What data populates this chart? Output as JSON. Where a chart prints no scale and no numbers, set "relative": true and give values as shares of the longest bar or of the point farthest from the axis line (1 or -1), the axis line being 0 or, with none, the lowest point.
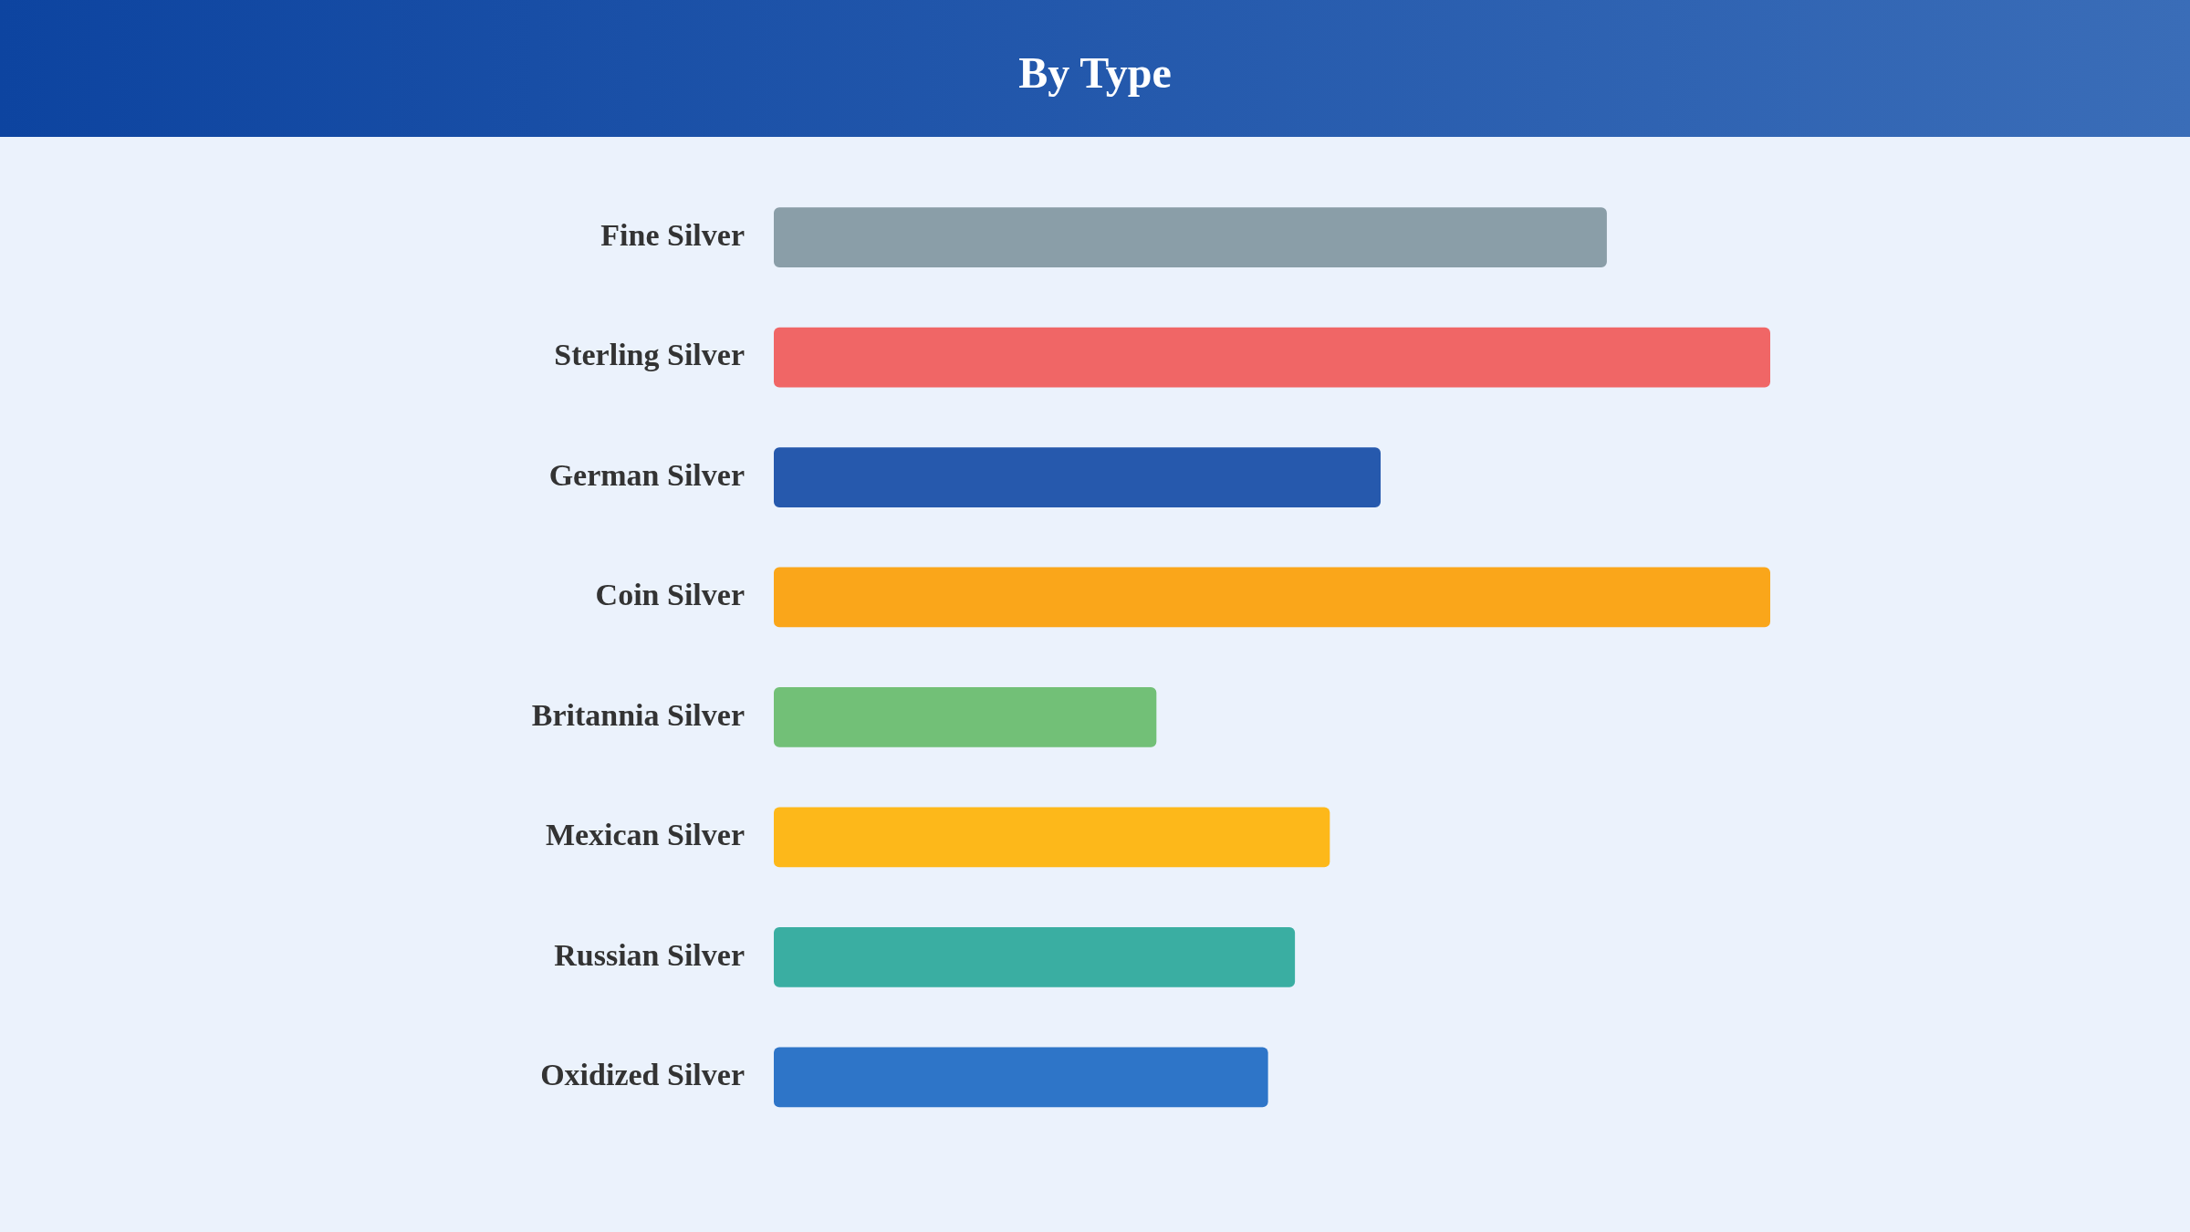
{
  "chart_data": {
    "type": "bar",
    "orientation": "horizontal",
    "relative": true,
    "title": "By Type",
    "categories": [
      "Fine Silver",
      "Sterling Silver",
      "German Silver",
      "Coin Silver",
      "Britannia Silver",
      "Mexican Silver",
      "Russian Silver",
      "Oxidized Silver"
    ],
    "values": [
      0.836,
      1,
      0.609,
      1,
      0.384,
      0.558,
      0.523,
      0.496
    ],
    "colors": [
      "#8a9ea8",
      "#f06666",
      "#2659ad",
      "#faa61a",
      "#72c077",
      "#fdb81a",
      "#3aaea2",
      "#2e75c8"
    ],
    "legend": false
  }
}
